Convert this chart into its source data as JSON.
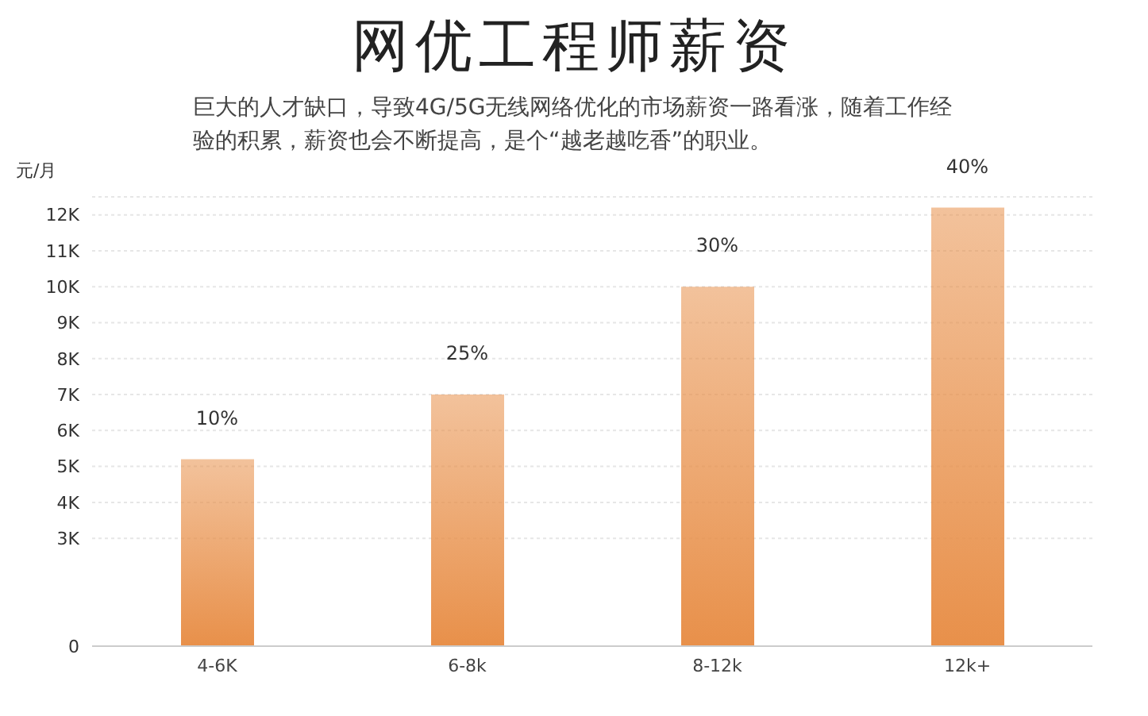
{
  "chart_data": {
    "type": "bar",
    "title": "网优工程师薪资",
    "subtitle": "巨大的人才缺口，导致4G/5G无线网络优化的市场薪资一路看涨，随着工作经验的积累，薪资也会不断提高，是个“越老越吃香”的职业。",
    "ylabel": "元/月",
    "categories": [
      "4-6K",
      "6-8k",
      "8-12k",
      "12k+"
    ],
    "values": [
      5.2,
      7,
      10,
      12.2
    ],
    "annotations": [
      {
        "text": "10%",
        "x": "4-6K",
        "y": 5.2
      },
      {
        "text": "25%",
        "x": "6-8k",
        "y": 7
      },
      {
        "text": "30%",
        "x": "8-12k",
        "y": 10
      },
      {
        "text": "40%",
        "x": "12k+",
        "y": 12.2
      }
    ],
    "color": "#e8904a",
    "ylim": [
      0,
      12.5
    ],
    "yticks": [
      0,
      {
        "value": 3,
        "label": "3K"
      },
      {
        "value": 4,
        "label": "4K"
      },
      {
        "value": 5,
        "label": "5K"
      },
      {
        "value": 6,
        "label": "6K"
      },
      {
        "value": 7,
        "label": "7K"
      },
      {
        "value": 8,
        "label": "8K"
      },
      {
        "value": 9,
        "label": "9K"
      },
      {
        "value": 10,
        "label": "10K"
      },
      {
        "value": 11,
        "label": "11K"
      },
      {
        "value": 12,
        "label": "12K"
      }
    ],
    "grid": "y"
  }
}
